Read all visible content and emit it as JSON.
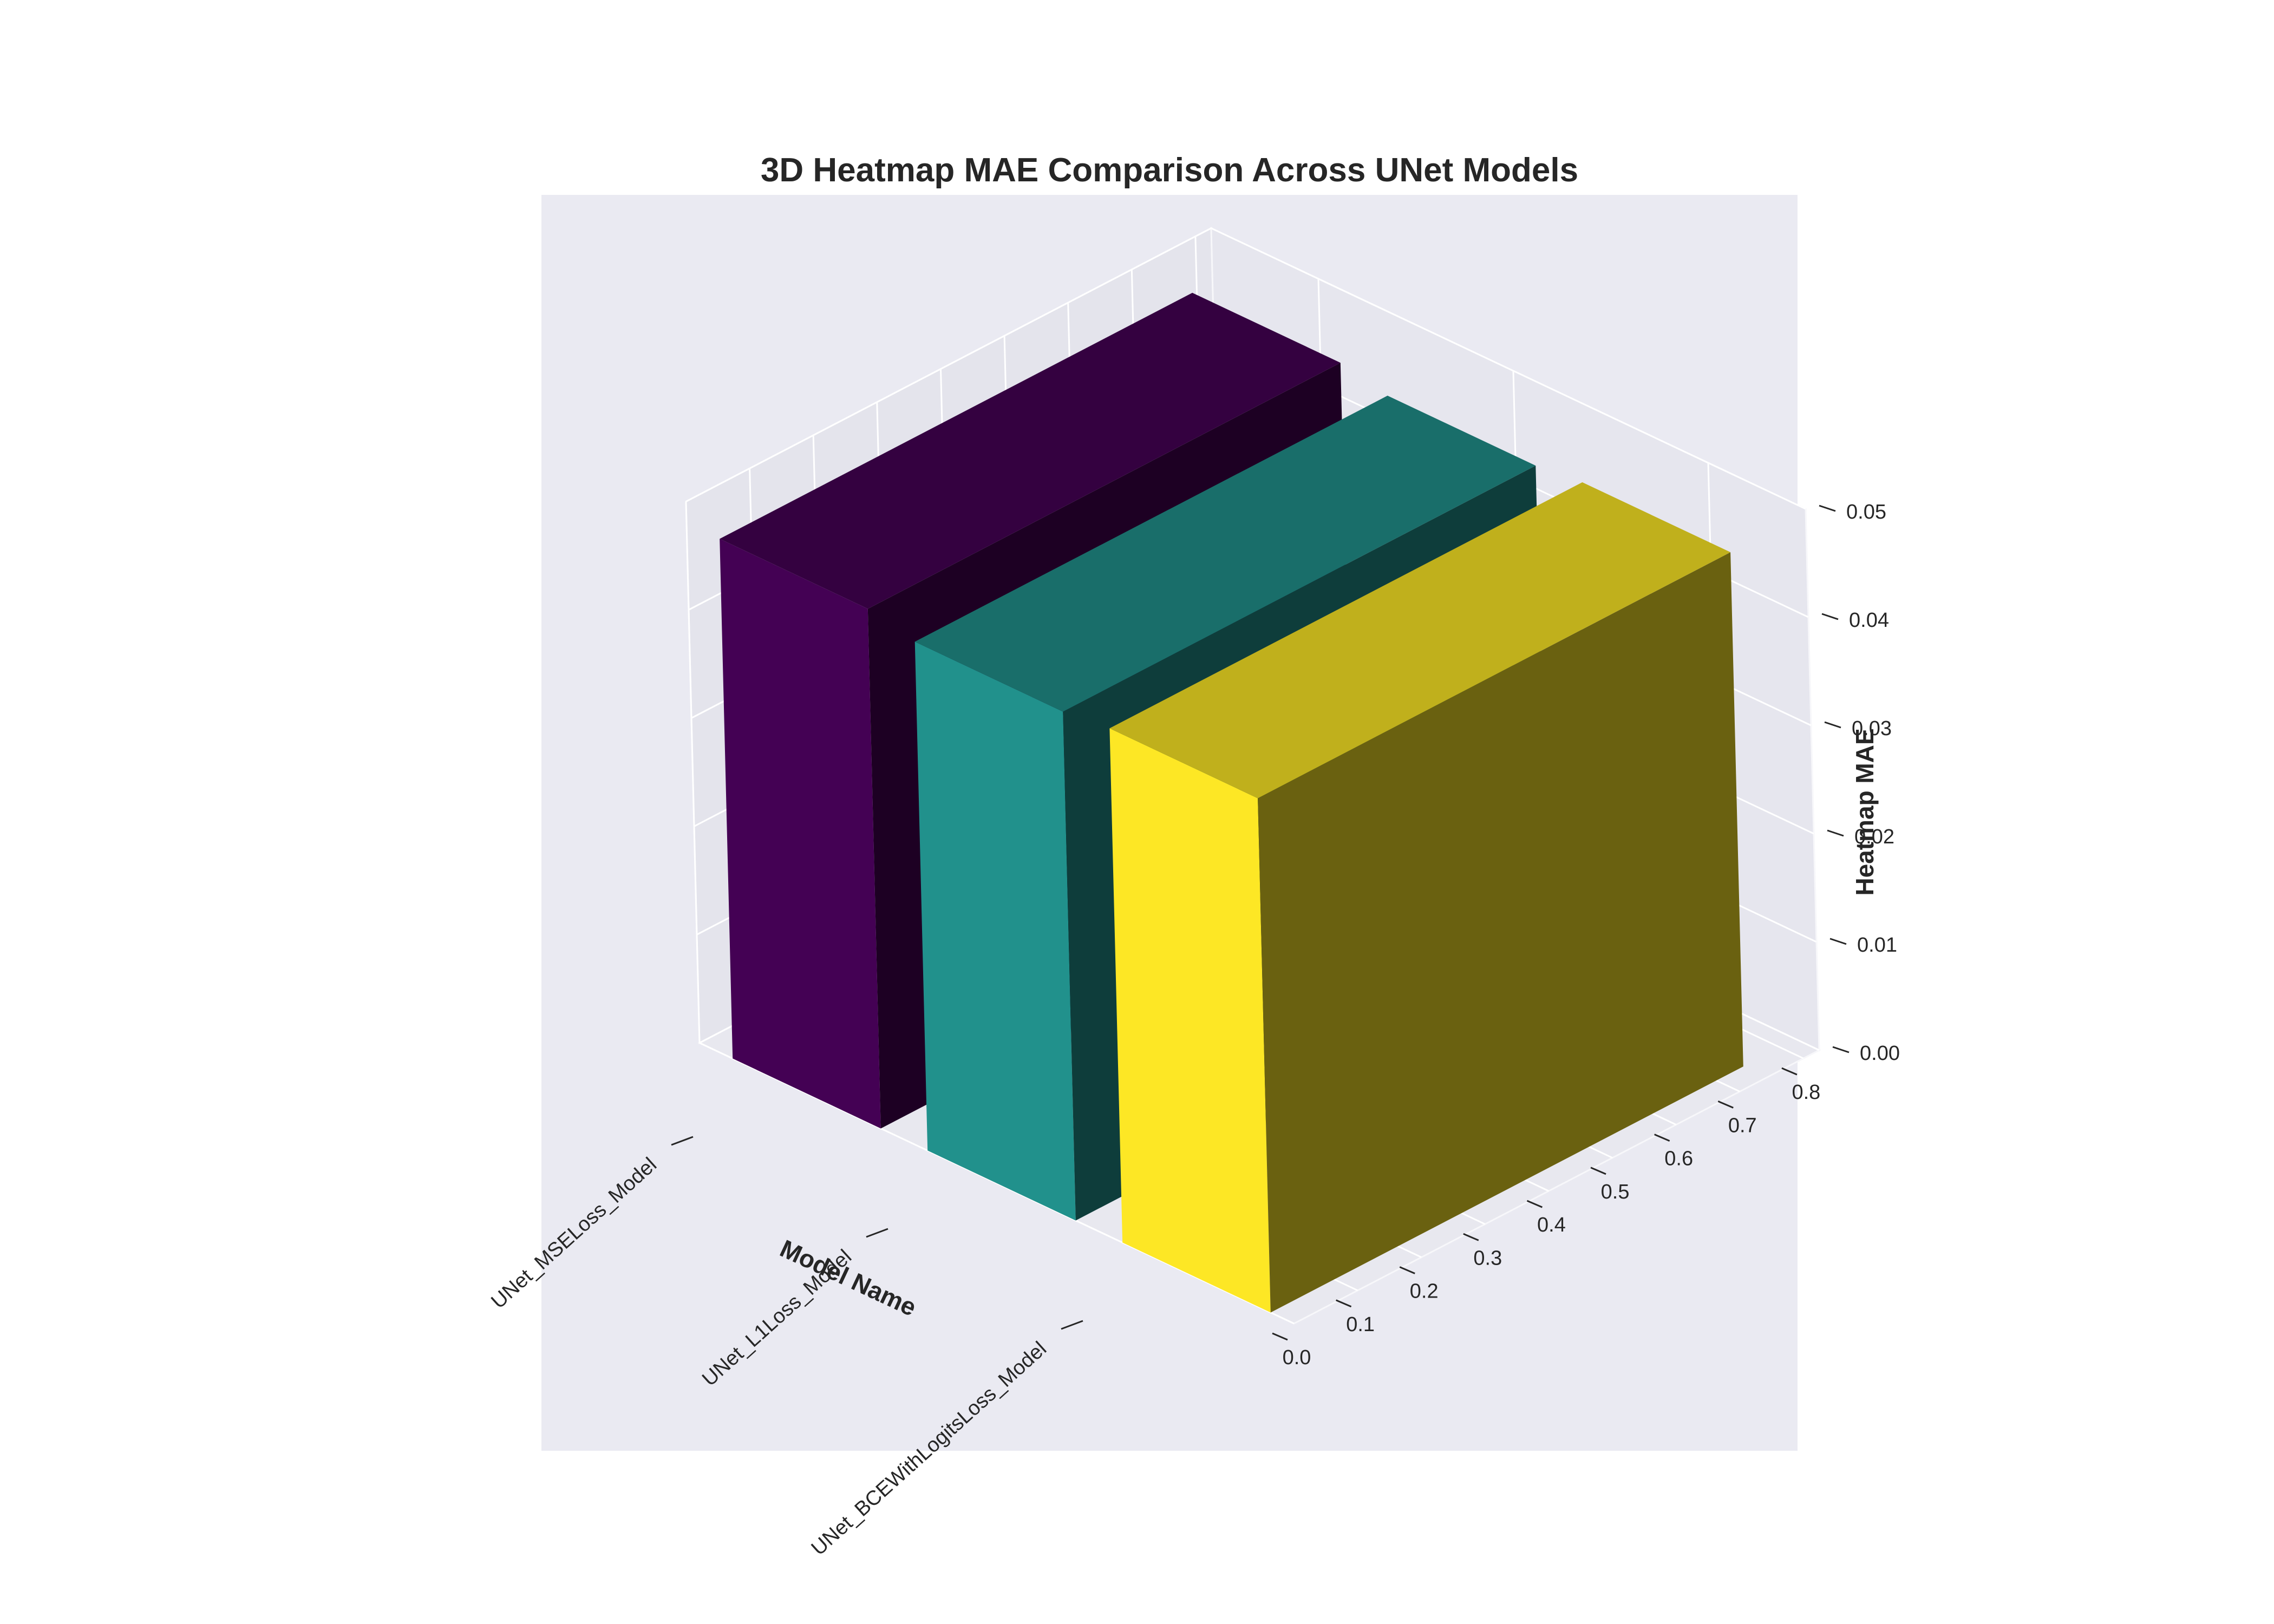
{
  "chart_data": {
    "type": "bar",
    "title": "3D Heatmap MAE Comparison Across UNet Models",
    "xlabel": "Model Name",
    "ylabel": "",
    "zlabel": "Heatmap MAE",
    "categories": [
      "UNet_MSELoss_Model",
      "UNet_L1Loss_Model",
      "UNet_BCEWithLogitsLoss_Model"
    ],
    "values": [
      0.048,
      0.047,
      0.0475
    ],
    "depth_range": [
      0,
      0.8
    ],
    "depth_ticks": [
      "0.0",
      "0.1",
      "0.2",
      "0.3",
      "0.4",
      "0.5",
      "0.6",
      "0.7",
      "0.8"
    ],
    "zlim": [
      0,
      0.05
    ],
    "z_ticks": [
      "0.00",
      "0.01",
      "0.02",
      "0.03",
      "0.04",
      "0.05"
    ],
    "grid": true,
    "colors": {
      "bars": [
        "#440154",
        "#21918c",
        "#fde725"
      ],
      "pane": "#eaeaf2"
    }
  }
}
